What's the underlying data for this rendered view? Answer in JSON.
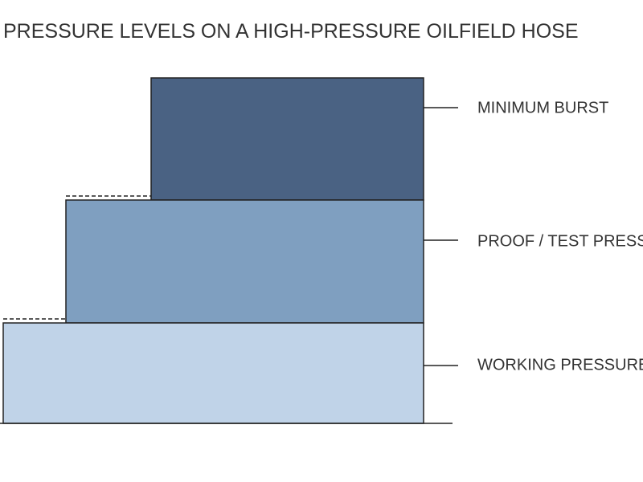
{
  "title": "PRESSURE LEVELS ON A HIGH-PRESSURE OILFIELD HOSE",
  "levels": [
    {
      "label": "MINIMUM BURST"
    },
    {
      "label": "PROOF / TEST PRESSURE"
    },
    {
      "label": "WORKING PRESSURE"
    }
  ]
}
